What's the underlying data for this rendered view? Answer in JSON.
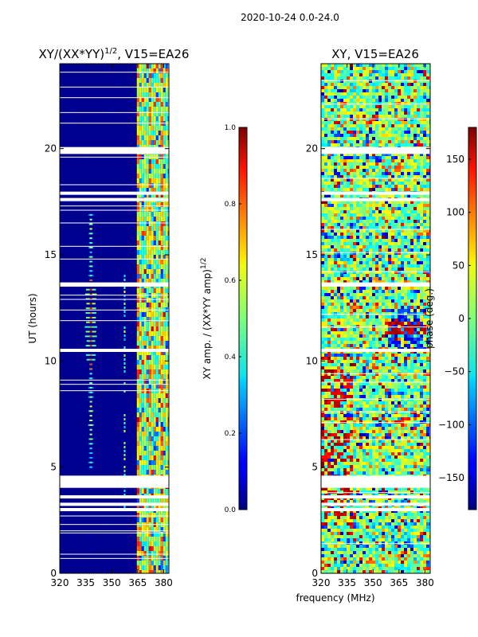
{
  "figure": {
    "suptitle": "2020-10-24 0.0-24.0",
    "shared_xlabel": "frequency (MHz)"
  },
  "chart_data": [
    {
      "type": "heatmap",
      "title_main": "XY/(XX*YY)",
      "title_sup": "1/2",
      "title_tail": ", V15=EA26",
      "xlabel": "",
      "ylabel": "UT (hours)",
      "xlim": [
        320,
        383
      ],
      "ylim": [
        0,
        24
      ],
      "xticks": [
        320,
        335,
        350,
        365,
        380
      ],
      "yticks": [
        0,
        5,
        10,
        15,
        20
      ],
      "colormap": "jet",
      "colorbar": {
        "label_main": "XY amp. / (XX*YY amp)",
        "label_sup": "1/2",
        "range": [
          0.0,
          1.0
        ],
        "ticks": [
          "0.0",
          "0.2",
          "0.4",
          "0.6",
          "0.8",
          "1.0"
        ]
      },
      "flagged_hours": [
        3.0,
        3.25,
        3.6,
        4.1,
        4.3,
        4.5,
        10.5,
        13.6,
        17.6,
        17.9,
        19.85,
        20.0
      ]
    },
    {
      "type": "heatmap",
      "title": "XY, V15=EA26",
      "xlabel": "frequency (MHz)",
      "ylabel": "",
      "xlim": [
        320,
        383
      ],
      "ylim": [
        0,
        24
      ],
      "xticks": [
        320,
        335,
        350,
        365,
        380
      ],
      "yticks": [
        0,
        5,
        10,
        15,
        20
      ],
      "colormap": "jet",
      "colorbar": {
        "label": "phase (deg.)",
        "range": [
          -180,
          180
        ],
        "ticks": [
          "150",
          "100",
          "50",
          "0",
          "−50",
          "−100",
          "−150"
        ]
      },
      "flagged_hours": [
        3.0,
        3.25,
        3.6,
        4.1,
        4.3,
        4.5,
        10.5,
        13.6,
        17.6,
        17.9,
        19.85,
        20.0
      ]
    }
  ]
}
